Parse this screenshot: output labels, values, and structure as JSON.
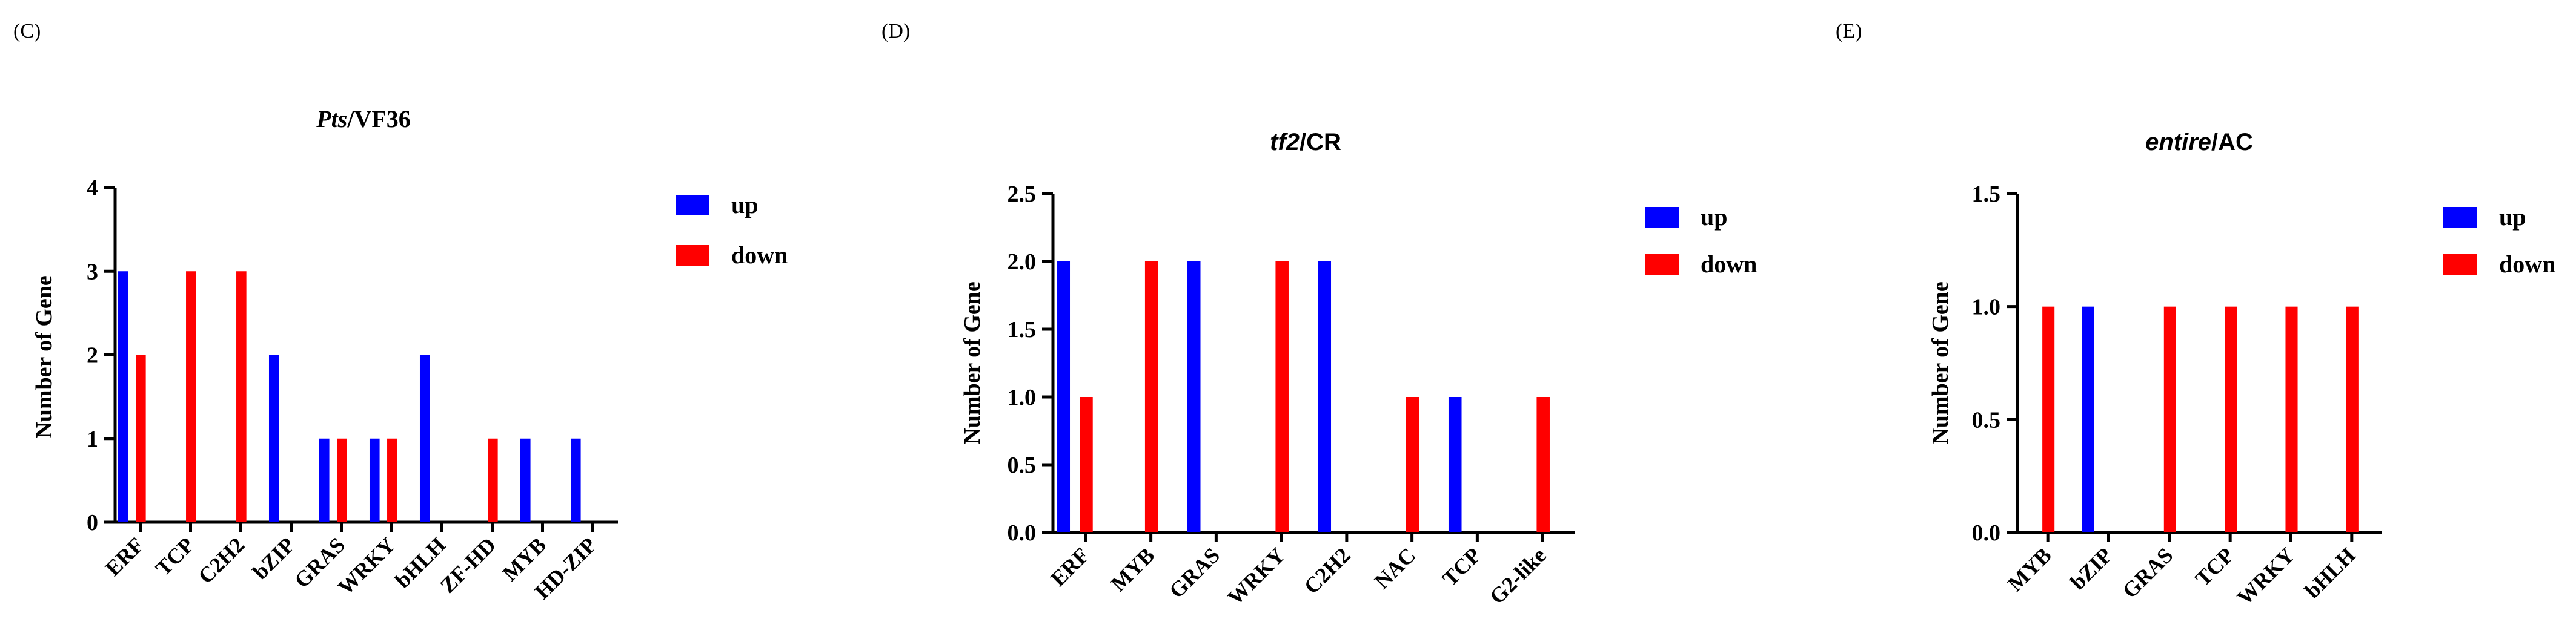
{
  "colors": {
    "up": "#0000ff",
    "down": "#ff0000",
    "axis": "#000000"
  },
  "panels": [
    {
      "label": "(C)",
      "title_italic": "Pts",
      "title_rest": "/VF36"
    },
    {
      "label": "(D)",
      "title_italic": "tf2",
      "title_rest": "/CR"
    },
    {
      "label": "(E)",
      "title_italic": "entire",
      "title_rest": "/AC"
    }
  ],
  "chart_data": [
    {
      "type": "bar",
      "title": "Pts/VF36",
      "xlabel": "",
      "ylabel": "Number of Gene",
      "ylim": [
        0,
        4
      ],
      "yticks": [
        "0",
        "1",
        "2",
        "3",
        "4"
      ],
      "categories": [
        "ERF",
        "TCP",
        "C2H2",
        "bZIP",
        "GRAS",
        "WRKY",
        "bHLH",
        "ZF-HD",
        "MYB",
        "HD-ZIP"
      ],
      "series": [
        {
          "name": "up",
          "values": [
            3,
            0,
            0,
            2,
            1,
            1,
            2,
            0,
            1,
            1
          ]
        },
        {
          "name": "down",
          "values": [
            2,
            3,
            3,
            0,
            1,
            1,
            0,
            1,
            0,
            0
          ]
        }
      ],
      "legend": "top-right",
      "grid": false
    },
    {
      "type": "bar",
      "title": "tf2/CR",
      "xlabel": "",
      "ylabel": "Number of Gene",
      "ylim": [
        0,
        2.5
      ],
      "yticks": [
        "0.0",
        "0.5",
        "1.0",
        "1.5",
        "2.0",
        "2.5"
      ],
      "categories": [
        "ERF",
        "MYB",
        "GRAS",
        "WRKY",
        "C2H2",
        "NAC",
        "TCP",
        "G2-like"
      ],
      "series": [
        {
          "name": "up",
          "values": [
            2,
            0,
            2,
            0,
            2,
            0,
            1,
            0
          ]
        },
        {
          "name": "down",
          "values": [
            1,
            2,
            0,
            2,
            0,
            1,
            0,
            1
          ]
        }
      ],
      "legend": "top-right",
      "grid": false
    },
    {
      "type": "bar",
      "title": "entire/AC",
      "xlabel": "",
      "ylabel": "Number of Gene",
      "ylim": [
        0,
        1.5
      ],
      "yticks": [
        "0.0",
        "0.5",
        "1.0",
        "1.5"
      ],
      "categories": [
        "MYB",
        "bZIP",
        "GRAS",
        "TCP",
        "WRKY",
        "bHLH"
      ],
      "series": [
        {
          "name": "up",
          "values": [
            0,
            1,
            0,
            0,
            0,
            0
          ]
        },
        {
          "name": "down",
          "values": [
            1,
            0,
            1,
            1,
            1,
            1
          ]
        }
      ],
      "legend": "top-right",
      "grid": false
    }
  ]
}
